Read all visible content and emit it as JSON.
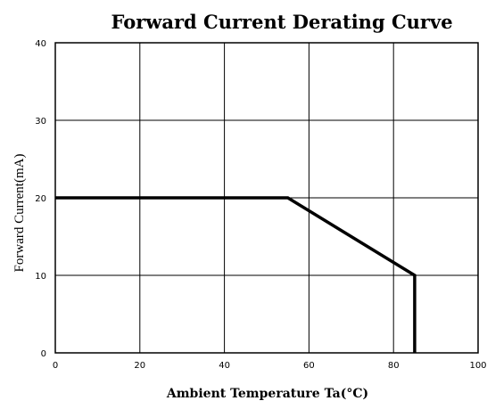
{
  "chart_data": {
    "type": "line",
    "title": "Forward Current Derating Curve",
    "xlabel": "Ambient Temperature Ta(°C)",
    "ylabel": "Forward Current(mA)",
    "xlim": [
      0,
      100
    ],
    "ylim": [
      0,
      40
    ],
    "x_ticks": [
      0,
      20,
      40,
      60,
      80,
      100
    ],
    "y_ticks": [
      0,
      10,
      20,
      30,
      40
    ],
    "x_tick_labels": [
      "0",
      "20",
      "40",
      "60",
      "80",
      "100"
    ],
    "y_tick_labels": [
      "0",
      "10",
      "20",
      "30",
      "40"
    ],
    "grid": true,
    "legend": "none",
    "series": [
      {
        "x": [
          0,
          55,
          85,
          85
        ],
        "y": [
          20,
          20,
          10,
          0
        ]
      }
    ],
    "colors": {
      "line": "#000000",
      "grid": "#000000",
      "background": "#ffffff"
    }
  }
}
